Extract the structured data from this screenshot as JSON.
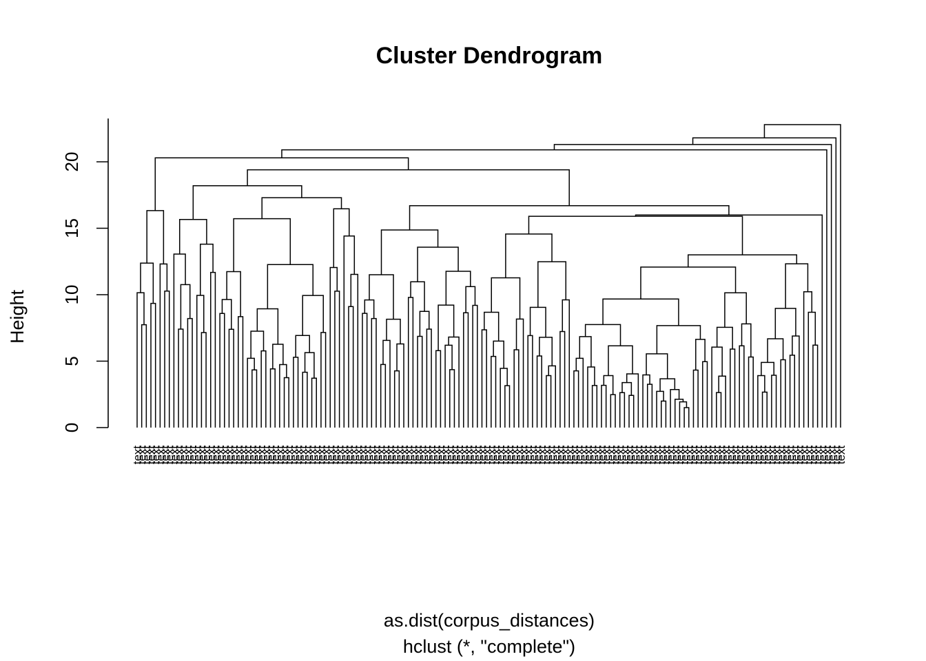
{
  "chart_data": {
    "type": "dendrogram",
    "title": "Cluster Dendrogram",
    "xlabel": "as.dist(corpus_distances)",
    "sub": "hclust (*, \"complete\")",
    "ylabel": "Height",
    "ylim": [
      0,
      23
    ],
    "yticks": [
      0,
      5,
      10,
      15,
      20
    ],
    "leaf_count": 151,
    "leaf_label_text": "text",
    "merge_heights": {
      "root": 22.8,
      "right_cluster": 21.9,
      "left_chain": [
        21.8,
        21.3,
        20.9,
        20.3,
        19.4
      ],
      "major_groups": [
        18.2,
        17.6,
        17.3,
        16.8,
        16.6,
        16.1,
        15.8,
        15.4,
        15.1,
        14.8,
        14.5,
        14.0,
        13.5,
        13.0,
        12.5,
        12.0,
        11.5,
        11.0,
        10.5,
        10.0,
        9.5,
        9.0,
        8.5,
        8.0,
        7.5,
        7.0,
        6.5,
        6.0,
        5.5,
        5.0,
        4.5,
        4.0,
        3.5
      ]
    }
  }
}
